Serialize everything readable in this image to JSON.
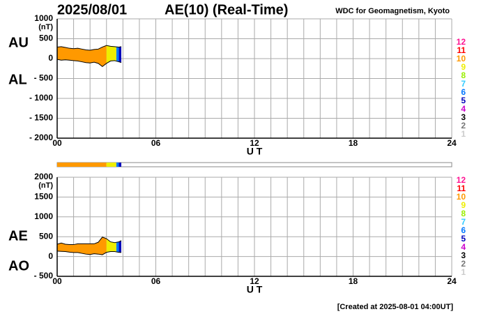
{
  "header": {
    "date": "2025/08/01",
    "title": "AE(10) (Real-Time)",
    "source": "WDC for Geomagnetism, Kyoto"
  },
  "footer": "[Created at 2025-08-01 04:00UT]",
  "station_legend": {
    "stations": [
      12,
      11,
      10,
      9,
      8,
      7,
      6,
      5,
      4,
      3,
      2,
      1
    ],
    "colors": [
      "#ff1493",
      "#ff0000",
      "#ff9900",
      "#eeee00",
      "#99ee00",
      "#33ccff",
      "#0077ff",
      "#0000bb",
      "#cc00cc",
      "#000000",
      "#777777",
      "#cccccc"
    ]
  },
  "station_bar": {
    "edges": [
      0,
      3,
      3.6,
      3.75,
      3.9
    ],
    "stations": [
      10,
      9,
      6,
      5
    ]
  },
  "chart_data": [
    {
      "type": "area",
      "ylabel": "(nT)",
      "xlabel": "U T",
      "x": [
        0,
        0.25,
        0.5,
        0.75,
        1,
        1.25,
        1.5,
        1.75,
        2,
        2.25,
        2.5,
        2.75,
        3,
        3.25,
        3.5,
        3.75,
        3.9
      ],
      "series": [
        {
          "name": "AU",
          "color": "#000000",
          "values": [
            290,
            300,
            280,
            260,
            250,
            260,
            240,
            220,
            210,
            230,
            240,
            290,
            330,
            310,
            300,
            290,
            300
          ]
        },
        {
          "name": "AL",
          "color": "#000000",
          "values": [
            -20,
            -40,
            -30,
            -40,
            -50,
            -60,
            -80,
            -100,
            -110,
            -90,
            -120,
            -200,
            -120,
            -60,
            -50,
            -80,
            -100
          ]
        }
      ],
      "xlim": [
        0,
        24
      ],
      "xticks": [
        {
          "value": 0,
          "label": "00"
        },
        {
          "value": 6,
          "label": "06"
        },
        12,
        18,
        24
      ],
      "xgrid": [
        0,
        1,
        2,
        3,
        4,
        5,
        6,
        7,
        8,
        9,
        10,
        11,
        12,
        13,
        14,
        15,
        16,
        17,
        18,
        19,
        20,
        21,
        22,
        23,
        24
      ],
      "ylim": [
        -2000,
        1000
      ],
      "yticks": [
        1000,
        500,
        0,
        {
          "value": -500,
          "label": "- 500"
        },
        {
          "value": -1000,
          "label": "- 1000"
        },
        {
          "value": -1500,
          "label": "- 1500"
        },
        {
          "value": -2000,
          "label": "- 2000"
        }
      ],
      "grid": true
    },
    {
      "type": "area",
      "ylabel": "(nT)",
      "xlabel": "U T",
      "x": [
        0,
        0.25,
        0.5,
        0.75,
        1,
        1.25,
        1.5,
        1.75,
        2,
        2.25,
        2.5,
        2.75,
        3,
        3.25,
        3.5,
        3.75,
        3.9
      ],
      "series": [
        {
          "name": "AE",
          "color": "#000000",
          "values": [
            310,
            340,
            310,
            300,
            300,
            320,
            320,
            320,
            320,
            320,
            360,
            490,
            450,
            370,
            350,
            370,
            400
          ]
        },
        {
          "name": "AO",
          "color": "#000000",
          "values": [
            135,
            130,
            125,
            110,
            100,
            100,
            80,
            60,
            50,
            70,
            60,
            45,
            105,
            125,
            125,
            105,
            100
          ]
        }
      ],
      "xlim": [
        0,
        24
      ],
      "xticks": [
        {
          "value": 0,
          "label": "00"
        },
        {
          "value": 6,
          "label": "06"
        },
        12,
        18,
        24
      ],
      "xgrid": [
        0,
        1,
        2,
        3,
        4,
        5,
        6,
        7,
        8,
        9,
        10,
        11,
        12,
        13,
        14,
        15,
        16,
        17,
        18,
        19,
        20,
        21,
        22,
        23,
        24
      ],
      "ylim": [
        -500,
        2000
      ],
      "yticks": [
        2000,
        1500,
        1000,
        500,
        0,
        {
          "value": -500,
          "label": "- 500"
        }
      ],
      "grid": true
    }
  ]
}
